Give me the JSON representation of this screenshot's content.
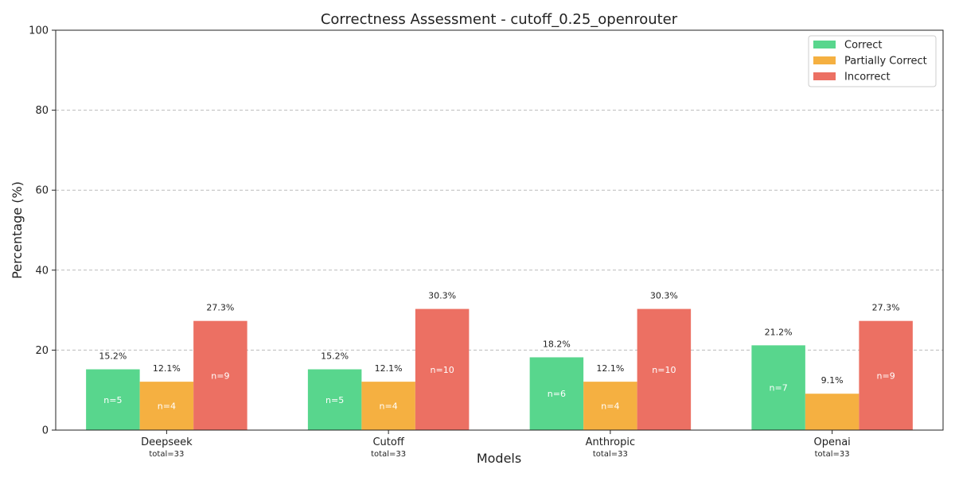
{
  "chart_data": {
    "type": "bar",
    "title": "Correctness Assessment - cutoff_0.25_openrouter",
    "xlabel": "Models",
    "ylabel": "Percentage (%)",
    "ylim": [
      0,
      100
    ],
    "yticks": [
      0,
      20,
      40,
      60,
      80,
      100
    ],
    "grid": true,
    "legend_position": "top-right",
    "categories": [
      "Deepseek",
      "Cutoff",
      "Anthropic",
      "Openai"
    ],
    "category_totals": [
      "total=33",
      "total=33",
      "total=33",
      "total=33"
    ],
    "series": [
      {
        "name": "Correct",
        "color": "#58d68d",
        "values": [
          15.2,
          15.2,
          18.2,
          21.2
        ],
        "value_labels": [
          "15.2%",
          "15.2%",
          "18.2%",
          "21.2%"
        ],
        "count_labels": [
          "n=5",
          "n=5",
          "n=6",
          "n=7"
        ]
      },
      {
        "name": "Partially Correct",
        "color": "#f5b041",
        "values": [
          12.1,
          12.1,
          12.1,
          9.1
        ],
        "value_labels": [
          "12.1%",
          "12.1%",
          "12.1%",
          "9.1%"
        ],
        "count_labels": [
          "n=4",
          "n=4",
          "n=4",
          ""
        ]
      },
      {
        "name": "Incorrect",
        "color": "#ec7063",
        "values": [
          27.3,
          30.3,
          30.3,
          27.3
        ],
        "value_labels": [
          "27.3%",
          "30.3%",
          "30.3%",
          "27.3%"
        ],
        "count_labels": [
          "n=9",
          "n=10",
          "n=10",
          "n=9"
        ]
      }
    ]
  }
}
